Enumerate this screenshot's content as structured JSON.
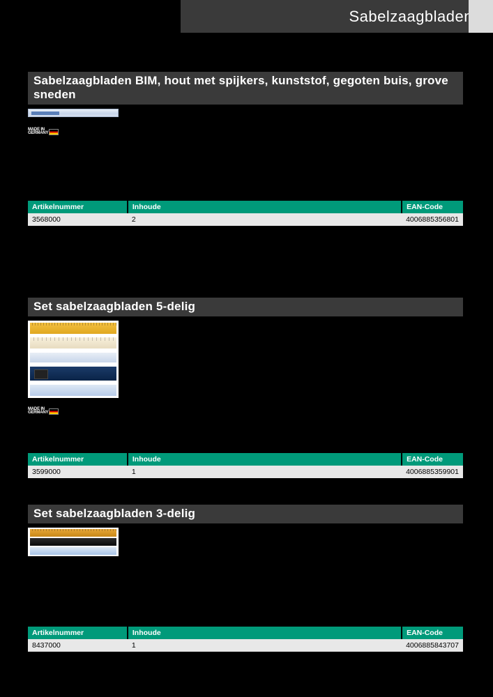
{
  "colors": {
    "page_bg": "#000000",
    "header_bg": "#3a3a3a",
    "header_pale": "#dcdcdc",
    "section_bg": "#3a3a3a",
    "th_bg": "#009a7a",
    "th_fg": "#ffffff",
    "td_bg": "#e8e8e8",
    "td_fg": "#000000",
    "title_fg": "#ffffff"
  },
  "header": {
    "title": "Sabelzaagbladen"
  },
  "made_in": {
    "line1": "MADE IN",
    "line2": "GERMANY"
  },
  "table_headers": {
    "artikelnummer": "Artikelnummer",
    "inhoude": "Inhoude",
    "ean": "EAN-Code"
  },
  "sections": [
    {
      "title": "Sabelzaagbladen BIM, hout met spijkers, kunststof, gegoten buis, grove sneden",
      "image_type": "long-blade",
      "has_made_in": true,
      "rows": [
        {
          "artikelnummer": "3568000",
          "inhoude": "2",
          "ean": "4006885356801"
        }
      ]
    },
    {
      "title": "Set sabelzaagbladen 5-delig",
      "image_type": "set5",
      "has_made_in": true,
      "rows": [
        {
          "artikelnummer": "3599000",
          "inhoude": "1",
          "ean": "4006885359901"
        }
      ]
    },
    {
      "title": "Set sabelzaagbladen 3-delig",
      "image_type": "set3",
      "has_made_in": false,
      "rows": [
        {
          "artikelnummer": "8437000",
          "inhoude": "1",
          "ean": "4006885843707"
        }
      ]
    }
  ]
}
